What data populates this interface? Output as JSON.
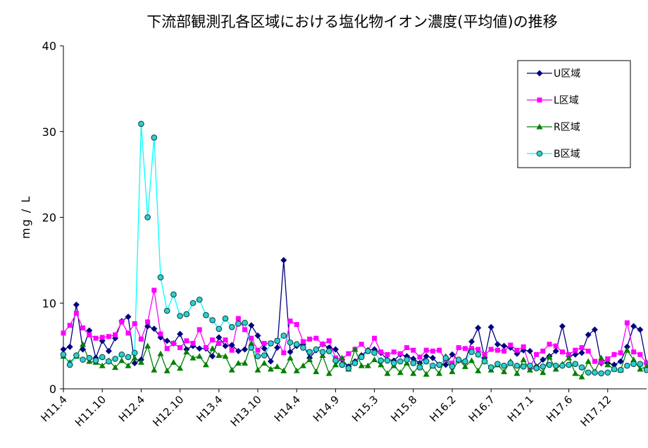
{
  "chart_data": {
    "type": "line",
    "title": "下流部観測孔各区域における塩化物イオン濃度(平均値)の推移",
    "y_label": "mg / L",
    "categories": [
      "H11.4",
      null,
      null,
      null,
      null,
      null,
      "H11.10",
      null,
      null,
      null,
      null,
      null,
      "H12.4",
      null,
      null,
      null,
      null,
      null,
      "H12.10",
      null,
      null,
      null,
      null,
      null,
      "H13.4",
      null,
      null,
      null,
      null,
      null,
      "H13.10",
      null,
      null,
      null,
      null,
      null,
      "H14.4",
      null,
      null,
      null,
      null,
      null,
      "H14.9",
      null,
      null,
      null,
      null,
      null,
      "H15.3",
      null,
      null,
      null,
      null,
      null,
      "H15.8",
      null,
      null,
      null,
      null,
      null,
      "H16.2",
      null,
      null,
      null,
      null,
      null,
      "H16.7",
      null,
      null,
      null,
      null,
      null,
      "H17.1",
      null,
      null,
      null,
      null,
      null,
      "H17.6",
      null,
      null,
      null,
      null,
      null,
      "H17.12",
      null,
      null,
      null,
      null,
      null,
      null
    ],
    "series": [
      {
        "name": "U区域",
        "color": "#000080",
        "marker": "diamond",
        "values": [
          4.6,
          4.9,
          9.8,
          4.6,
          6.8,
          3.6,
          5.6,
          4.4,
          5.9,
          7.9,
          8.4,
          3.0,
          3.4,
          7.3,
          7.0,
          6.0,
          5.6,
          5.3,
          6.4,
          4.6,
          5.0,
          4.7,
          4.7,
          3.8,
          6.0,
          5.0,
          5.1,
          4.4,
          4.6,
          7.4,
          6.2,
          4.7,
          3.2,
          4.8,
          15.0,
          4.3,
          5.0,
          5.2,
          3.6,
          4.5,
          5.2,
          4.8,
          4.6,
          3.4,
          2.6,
          3.2,
          3.9,
          4.5,
          4.6,
          4.2,
          3.4,
          3.3,
          4.0,
          3.8,
          3.5,
          3.0,
          3.8,
          3.6,
          2.8,
          2.8,
          4.0,
          3.3,
          3.2,
          5.5,
          7.1,
          3.6,
          7.2,
          5.2,
          5.0,
          4.8,
          4.1,
          4.5,
          4.4,
          2.6,
          3.4,
          3.8,
          4.4,
          7.3,
          3.8,
          4.0,
          4.2,
          6.3,
          6.9,
          3.0,
          3.0,
          2.8,
          3.2,
          4.9,
          7.3,
          6.9,
          3.0
        ]
      },
      {
        "name": "L区域",
        "color": "#ff00ff",
        "marker": "square",
        "values": [
          6.5,
          7.4,
          8.8,
          7.1,
          6.3,
          5.9,
          6.0,
          6.1,
          6.3,
          7.8,
          6.5,
          7.6,
          5.8,
          7.8,
          11.5,
          6.4,
          4.7,
          5.3,
          4.8,
          5.6,
          5.3,
          6.9,
          4.8,
          5.7,
          5.3,
          5.7,
          4.5,
          8.2,
          6.9,
          5.9,
          4.5,
          5.3,
          5.3,
          5.6,
          4.2,
          7.9,
          7.5,
          5.5,
          5.8,
          5.9,
          5.2,
          5.6,
          3.6,
          3.5,
          4.1,
          4.6,
          5.2,
          4.4,
          5.9,
          4.3,
          4.0,
          4.3,
          4.1,
          4.8,
          4.5,
          3.7,
          4.5,
          4.4,
          4.5,
          3.4,
          3.0,
          4.8,
          4.7,
          4.7,
          4.6,
          4.0,
          4.6,
          4.5,
          4.4,
          5.1,
          4.5,
          4.9,
          2.5,
          4.0,
          4.4,
          5.2,
          5.0,
          4.3,
          4.0,
          4.5,
          4.8,
          4.4,
          3.2,
          3.1,
          3.5,
          4.0,
          4.2,
          7.7,
          4.3,
          4.0,
          3.0
        ]
      },
      {
        "name": "R区域",
        "color": "#008000",
        "marker": "triangle",
        "values": [
          3.8,
          3.1,
          3.8,
          5.2,
          3.2,
          3.1,
          2.7,
          3.3,
          2.5,
          3.3,
          2.7,
          3.6,
          3.1,
          5.0,
          2.2,
          4.1,
          2.1,
          3.1,
          2.4,
          4.3,
          3.6,
          3.8,
          2.8,
          4.7,
          3.9,
          3.8,
          2.2,
          3.0,
          3.0,
          5.3,
          2.2,
          3.0,
          2.3,
          2.6,
          2.1,
          3.6,
          2.1,
          2.7,
          3.4,
          2.0,
          3.9,
          1.8,
          2.8,
          3.6,
          2.3,
          4.6,
          2.7,
          2.7,
          3.4,
          2.8,
          1.8,
          2.7,
          1.9,
          3.0,
          1.8,
          2.8,
          1.7,
          2.7,
          1.8,
          3.8,
          2.0,
          3.4,
          2.6,
          3.3,
          2.1,
          3.5,
          2.2,
          2.8,
          2.0,
          3.2,
          1.8,
          3.4,
          2.2,
          2.6,
          1.9,
          3.7,
          2.3,
          2.9,
          3.6,
          1.8,
          1.4,
          3.2,
          2.0,
          3.6,
          2.8,
          2.3,
          2.2,
          4.5,
          3.4,
          2.3,
          2.6
        ]
      },
      {
        "name": "B区域",
        "color": "#00ffff",
        "marker": "circle",
        "values": [
          4.0,
          2.8,
          3.9,
          3.4,
          3.6,
          3.3,
          3.7,
          3.2,
          3.5,
          4.0,
          3.7,
          4.2,
          30.9,
          20.0,
          29.3,
          13.0,
          9.1,
          11.0,
          8.5,
          8.7,
          10.0,
          10.4,
          8.6,
          8.0,
          7.0,
          8.2,
          7.2,
          7.6,
          7.7,
          4.8,
          3.8,
          3.9,
          5.3,
          5.6,
          6.2,
          5.4,
          5.2,
          4.8,
          4.3,
          4.6,
          4.3,
          4.4,
          3.3,
          2.8,
          2.4,
          3.0,
          3.7,
          4.4,
          4.2,
          3.3,
          3.3,
          3.0,
          3.2,
          3.4,
          3.0,
          2.5,
          3.2,
          2.7,
          2.8,
          3.6,
          2.6,
          3.4,
          3.2,
          4.3,
          4.0,
          3.2,
          2.5,
          2.9,
          2.7,
          3.0,
          2.7,
          2.6,
          2.7,
          2.4,
          2.6,
          2.8,
          2.7,
          2.7,
          2.8,
          2.9,
          2.5,
          1.9,
          1.9,
          1.8,
          1.9,
          2.3,
          2.2,
          2.7,
          2.9,
          2.9,
          2.2
        ]
      }
    ],
    "ylim": [
      0,
      40
    ],
    "yticks": [
      0,
      10,
      20,
      30,
      40
    ],
    "grid": false,
    "legend": "upper right"
  }
}
